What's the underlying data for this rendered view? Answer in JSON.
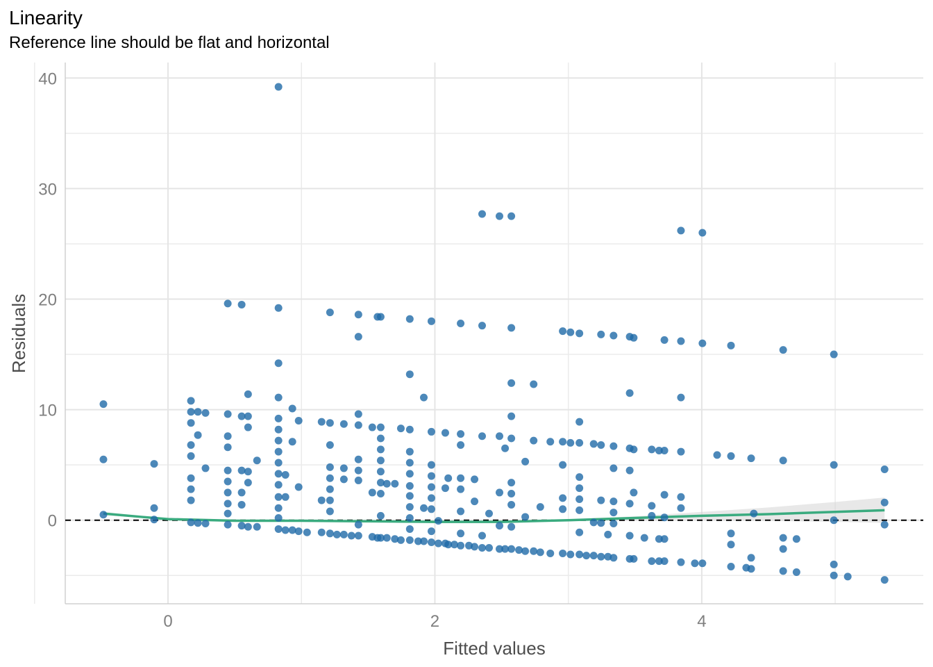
{
  "chart_data": {
    "type": "scatter",
    "title": "Linearity",
    "subtitle": "Reference line should be flat and horizontal",
    "xlabel": "Fitted values",
    "ylabel": "Residuals",
    "xlim": [
      -0.77,
      5.66
    ],
    "ylim": [
      -7.56,
      41.4
    ],
    "xticks": [
      0,
      2,
      4
    ],
    "xtick_labels": [
      "0",
      "2",
      "4"
    ],
    "yticks": [
      0,
      10,
      20,
      30,
      40
    ],
    "ytick_labels": [
      "0",
      "10",
      "20",
      "30",
      "40"
    ],
    "grid": true,
    "reference_line_y": 0,
    "colors": {
      "points": "#1f6aa8",
      "smooth": "#3aab7f",
      "ribbon": "#d9d9d9",
      "grid": "#e5e5e5"
    },
    "points_by_x": [
      {
        "x": -0.484,
        "ys": [
          10.5,
          5.5,
          0.5
        ]
      },
      {
        "x": -0.104,
        "ys": [
          5.1,
          1.1,
          0.06
        ]
      },
      {
        "x": 0.172,
        "ys": [
          10.8,
          9.8,
          8.8,
          6.8,
          5.8,
          3.8,
          2.8,
          1.8,
          -0.2
        ]
      },
      {
        "x": 0.224,
        "ys": [
          9.8,
          7.7,
          -0.25
        ]
      },
      {
        "x": 0.281,
        "ys": [
          9.7,
          4.7,
          -0.3
        ]
      },
      {
        "x": 0.448,
        "ys": [
          19.6,
          9.6,
          7.6,
          6.6,
          4.5,
          3.5,
          2.5,
          1.5,
          0.6,
          -0.4
        ]
      },
      {
        "x": 0.552,
        "ys": [
          19.5,
          9.4,
          4.5,
          2.5,
          1.4,
          -0.5
        ]
      },
      {
        "x": 0.6,
        "ys": [
          11.4,
          9.4,
          8.4,
          4.4,
          3.4,
          -0.6
        ]
      },
      {
        "x": 0.667,
        "ys": [
          5.4,
          -0.6
        ]
      },
      {
        "x": 0.828,
        "ys": [
          39.2,
          19.2,
          14.2,
          11.1,
          9.2,
          8.2,
          7.2,
          6.2,
          5.2,
          4.2,
          3.2,
          2.1,
          1.1,
          0.2,
          -0.8
        ]
      },
      {
        "x": 0.88,
        "ys": [
          4.1,
          2.1,
          -0.9
        ]
      },
      {
        "x": 0.932,
        "ys": [
          10.1,
          7.1,
          -0.9
        ]
      },
      {
        "x": 0.979,
        "ys": [
          9.0,
          3.0,
          -1.0
        ]
      },
      {
        "x": 1.042,
        "ys": [
          -1.1
        ]
      },
      {
        "x": 1.151,
        "ys": [
          8.9,
          1.8,
          -1.1
        ]
      },
      {
        "x": 1.214,
        "ys": [
          18.8,
          8.8,
          6.8,
          4.8,
          3.8,
          2.8,
          1.8,
          0.8,
          -1.2
        ]
      },
      {
        "x": 1.266,
        "ys": [
          -1.3
        ]
      },
      {
        "x": 1.318,
        "ys": [
          8.7,
          4.7,
          3.7,
          -1.3
        ]
      },
      {
        "x": 1.375,
        "ys": [
          -1.4
        ]
      },
      {
        "x": 1.427,
        "ys": [
          18.6,
          16.6,
          9.6,
          8.6,
          5.5,
          4.5,
          3.6,
          -0.4,
          -1.4
        ]
      },
      {
        "x": 1.531,
        "ys": [
          8.4,
          2.5,
          -1.5
        ]
      },
      {
        "x": 1.57,
        "ys": [
          18.4,
          -1.6
        ]
      },
      {
        "x": 1.594,
        "ys": [
          18.4,
          8.4,
          7.4,
          6.4,
          5.4,
          4.4,
          3.4,
          2.4,
          0.4,
          -1.6
        ]
      },
      {
        "x": 1.64,
        "ys": [
          3.3,
          -1.6
        ]
      },
      {
        "x": 1.7,
        "ys": [
          3.3,
          -1.7
        ]
      },
      {
        "x": 1.745,
        "ys": [
          8.3,
          -1.8
        ]
      },
      {
        "x": 1.812,
        "ys": [
          18.2,
          13.2,
          8.2,
          6.2,
          5.2,
          4.2,
          3.1,
          2.2,
          1.2,
          0.2,
          -0.8,
          -1.8
        ]
      },
      {
        "x": 1.875,
        "ys": [
          -1.9
        ]
      },
      {
        "x": 1.917,
        "ys": [
          11.1,
          1.1,
          -1.9
        ]
      },
      {
        "x": 1.974,
        "ys": [
          18.0,
          8.0,
          5.0,
          4.0,
          3.0,
          2.0,
          1.0,
          -1.0,
          -2.0
        ]
      },
      {
        "x": 2.026,
        "ys": [
          -0.06,
          -2.1
        ]
      },
      {
        "x": 2.078,
        "ys": [
          7.9,
          2.9,
          -2.1
        ]
      },
      {
        "x": 2.1,
        "ys": [
          3.8,
          -2.2
        ]
      },
      {
        "x": 2.146,
        "ys": [
          -2.2
        ]
      },
      {
        "x": 2.193,
        "ys": [
          17.8,
          7.8,
          6.8,
          3.8,
          2.8,
          0.8,
          -1.2,
          -2.3
        ]
      },
      {
        "x": 2.255,
        "ys": [
          -2.3
        ]
      },
      {
        "x": 2.297,
        "ys": [
          3.7,
          1.7,
          -2.4
        ]
      },
      {
        "x": 2.354,
        "ys": [
          27.7,
          17.6,
          7.6,
          -1.4,
          -2.5
        ]
      },
      {
        "x": 2.406,
        "ys": [
          0.6,
          -2.5
        ]
      },
      {
        "x": 2.484,
        "ys": [
          27.5,
          7.6,
          2.5,
          -0.5,
          -2.6
        ]
      },
      {
        "x": 2.526,
        "ys": [
          6.5,
          -2.6
        ]
      },
      {
        "x": 2.573,
        "ys": [
          27.5,
          17.4,
          12.4,
          9.4,
          7.4,
          3.4,
          2.4,
          1.4,
          -0.6,
          -2.6
        ]
      },
      {
        "x": 2.63,
        "ys": [
          -2.7
        ]
      },
      {
        "x": 2.677,
        "ys": [
          5.3,
          0.3,
          -2.8
        ]
      },
      {
        "x": 2.74,
        "ys": [
          12.3,
          7.2,
          -2.8
        ]
      },
      {
        "x": 2.79,
        "ys": [
          1.2,
          -2.9
        ]
      },
      {
        "x": 2.865,
        "ys": [
          7.1,
          -3.0
        ]
      },
      {
        "x": 2.958,
        "ys": [
          17.1,
          7.1,
          5.0,
          2.0,
          1.0,
          -3.0
        ]
      },
      {
        "x": 3.016,
        "ys": [
          17.0,
          7.0,
          -3.1
        ]
      },
      {
        "x": 3.083,
        "ys": [
          16.9,
          8.9,
          7.0,
          3.9,
          2.9,
          1.9,
          0.9,
          -1.1,
          -3.1
        ]
      },
      {
        "x": 3.135,
        "ys": [
          -3.2
        ]
      },
      {
        "x": 3.19,
        "ys": [
          6.9,
          -0.2,
          -3.2
        ]
      },
      {
        "x": 3.245,
        "ys": [
          16.8,
          6.8,
          1.8,
          -0.25,
          -3.3
        ]
      },
      {
        "x": 3.297,
        "ys": [
          -1.3,
          -3.3
        ]
      },
      {
        "x": 3.339,
        "ys": [
          16.7,
          6.7,
          4.7,
          1.7,
          0.7,
          -0.3,
          -3.4
        ]
      },
      {
        "x": 3.46,
        "ys": [
          16.6,
          11.5,
          6.5,
          4.5,
          1.5,
          -1.4,
          -3.5
        ]
      },
      {
        "x": 3.49,
        "ys": [
          16.5,
          6.4,
          2.5,
          -3.5
        ]
      },
      {
        "x": 3.57,
        "ys": [
          -1.6
        ]
      },
      {
        "x": 3.625,
        "ys": [
          6.4,
          1.3,
          0.4,
          -3.7
        ]
      },
      {
        "x": 3.68,
        "ys": [
          6.3,
          -1.7,
          -3.7
        ]
      },
      {
        "x": 3.72,
        "ys": [
          16.3,
          6.3,
          2.3,
          0.25,
          -1.7,
          -3.7
        ]
      },
      {
        "x": 3.844,
        "ys": [
          26.2,
          16.2,
          11.1,
          6.2,
          2.1,
          1.1,
          -3.8
        ]
      },
      {
        "x": 3.948,
        "ys": [
          -3.9
        ]
      },
      {
        "x": 4.005,
        "ys": [
          26.0,
          16.0,
          -3.9
        ]
      },
      {
        "x": 4.115,
        "ys": [
          5.9
        ]
      },
      {
        "x": 4.219,
        "ys": [
          15.8,
          5.8,
          -1.2,
          -2.2,
          -4.2
        ]
      },
      {
        "x": 4.333,
        "ys": [
          -4.3
        ]
      },
      {
        "x": 4.37,
        "ys": [
          5.6,
          -3.4,
          -4.4
        ]
      },
      {
        "x": 4.39,
        "ys": [
          0.6
        ]
      },
      {
        "x": 4.61,
        "ys": [
          15.4,
          5.4,
          -1.6,
          -2.6,
          -4.6
        ]
      },
      {
        "x": 4.71,
        "ys": [
          -1.7,
          -4.7
        ]
      },
      {
        "x": 4.99,
        "ys": [
          15.0,
          5.0,
          0.0,
          -4.0,
          -5.0
        ]
      },
      {
        "x": 5.094,
        "ys": [
          -5.1
        ]
      },
      {
        "x": 5.37,
        "ys": [
          4.6,
          1.6,
          -0.4,
          -5.4
        ]
      }
    ],
    "smooth": {
      "x": [
        -0.484,
        -0.2,
        0,
        0.5,
        1,
        1.5,
        2,
        2.5,
        3,
        3.5,
        4,
        4.5,
        5,
        5.37
      ],
      "y": [
        0.6,
        0.3,
        0.1,
        -0.05,
        -0.05,
        -0.1,
        -0.15,
        -0.15,
        0,
        0.2,
        0.4,
        0.55,
        0.75,
        0.9
      ],
      "se": [
        0.15,
        0.1,
        0.08,
        0.06,
        0.05,
        0.05,
        0.05,
        0.06,
        0.08,
        0.15,
        0.35,
        0.6,
        0.9,
        1.15
      ]
    }
  }
}
